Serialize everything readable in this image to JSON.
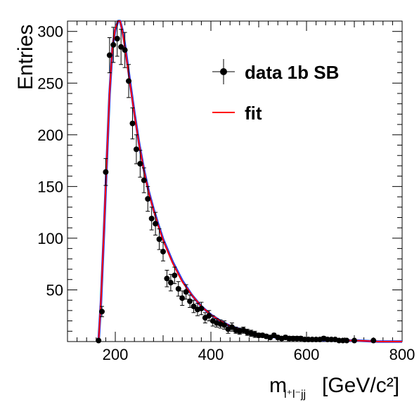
{
  "chart_data": {
    "type": "scatter",
    "xlabel": "m",
    "xlabel_sub": "l⁺l⁻jj",
    "xlabel_unit": "[GeV/c²]",
    "ylabel": "Entries",
    "xlim": [
      100,
      800
    ],
    "ylim": [
      0,
      310
    ],
    "x_ticks": [
      200,
      400,
      600,
      800
    ],
    "y_ticks": [
      50,
      100,
      150,
      200,
      250,
      300
    ],
    "legend_position": "top-right",
    "legend": [
      {
        "label": "data 1b SB",
        "marker": "point-with-errorbar",
        "color": "#000000"
      },
      {
        "label": "fit",
        "marker": "line",
        "color": "#ff0000"
      }
    ],
    "series": [
      {
        "name": "data 1b SB",
        "kind": "points",
        "color": "#000000",
        "x": [
          165,
          172,
          180,
          188,
          196,
          204,
          212,
          220,
          228,
          236,
          244,
          252,
          260,
          268,
          276,
          284,
          292,
          300,
          308,
          316,
          324,
          332,
          340,
          348,
          356,
          364,
          372,
          380,
          388,
          396,
          404,
          412,
          420,
          428,
          436,
          444,
          452,
          460,
          468,
          476,
          484,
          492,
          500,
          508,
          516,
          524,
          532,
          540,
          548,
          556,
          564,
          572,
          580,
          588,
          596,
          604,
          612,
          620,
          628,
          636,
          644,
          652,
          660,
          668,
          676,
          684,
          700,
          740
        ],
        "y": [
          1,
          29,
          164,
          277,
          287,
          293,
          285,
          282,
          252,
          211,
          186,
          172,
          156,
          138,
          119,
          114,
          99,
          87,
          61,
          57,
          64,
          51,
          42,
          48,
          39,
          34,
          31,
          32,
          23,
          25,
          20,
          18,
          17,
          16,
          12,
          14,
          11,
          10,
          11,
          9,
          8,
          7,
          6,
          6,
          5,
          4,
          6,
          4,
          3,
          4,
          3,
          3,
          3,
          3,
          2,
          2,
          2,
          2,
          2,
          3,
          2,
          2,
          2,
          1,
          1,
          1,
          1,
          1
        ],
        "err": [
          1,
          5,
          13,
          17,
          17,
          17,
          17,
          17,
          16,
          15,
          14,
          13,
          12,
          12,
          11,
          11,
          10,
          9,
          8,
          8,
          8,
          7,
          7,
          7,
          6,
          6,
          6,
          6,
          5,
          5,
          5,
          4,
          4,
          4,
          4,
          4,
          3,
          3,
          3,
          3,
          3,
          3,
          2,
          2,
          2,
          2,
          2,
          2,
          2,
          2,
          2,
          2,
          2,
          2,
          1,
          1,
          1,
          1,
          1,
          2,
          1,
          1,
          1,
          1,
          1,
          1,
          1,
          1
        ]
      },
      {
        "name": "fit",
        "kind": "line",
        "color": "#ff0000",
        "x": [
          165,
          170,
          176,
          182,
          188,
          194,
          200,
          206,
          210,
          215,
          220,
          226,
          232,
          240,
          250,
          260,
          270,
          280,
          290,
          300,
          320,
          340,
          360,
          380,
          400,
          420,
          440,
          460,
          480,
          500,
          520,
          540,
          560,
          580,
          600,
          650,
          700,
          750,
          800
        ],
        "y": [
          0,
          40,
          105,
          175,
          240,
          285,
          303,
          310,
          310,
          300,
          285,
          265,
          245,
          220,
          190,
          165,
          144,
          127,
          112,
          98,
          76,
          58,
          45,
          34,
          26,
          20,
          15,
          12,
          9,
          7,
          5,
          4,
          3,
          3,
          2,
          1,
          1,
          0,
          0
        ]
      },
      {
        "name": "",
        "kind": "line",
        "color": "#1f3fff",
        "x": [
          165,
          170,
          176,
          182,
          188,
          194,
          200,
          206,
          210,
          215,
          220,
          226,
          232,
          240,
          250,
          260,
          270,
          280,
          290,
          300,
          320,
          340,
          360,
          380,
          400,
          420,
          440,
          460,
          480,
          500,
          520,
          540,
          560,
          580,
          600,
          650,
          700,
          750,
          800
        ],
        "y": [
          0,
          38,
          103,
          173,
          239,
          284,
          302,
          310,
          311,
          301,
          287,
          267,
          247,
          221,
          191,
          166,
          145,
          128,
          113,
          99,
          77,
          59,
          45,
          34,
          26,
          20,
          15,
          12,
          9,
          7,
          5,
          4,
          3,
          3,
          2,
          1,
          1,
          0,
          0
        ]
      }
    ]
  }
}
